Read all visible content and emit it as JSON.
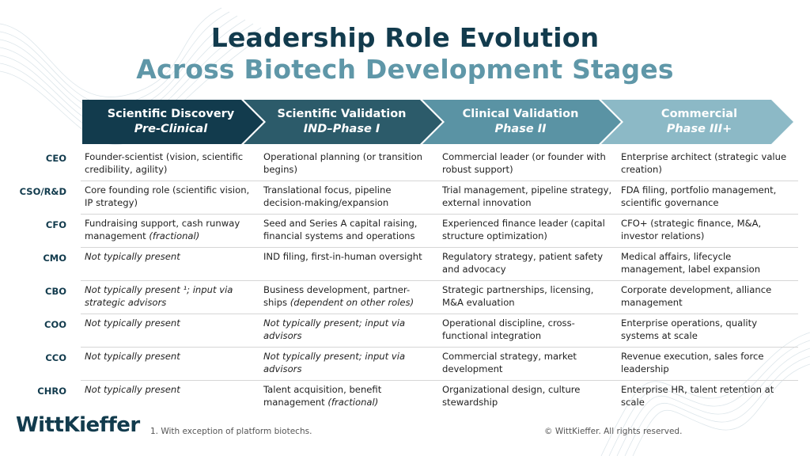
{
  "title": {
    "line1": "Leadership Role Evolution",
    "line2": "Across Biotech Development Stages"
  },
  "colors": {
    "title_dark": "#123b4d",
    "title_light": "#5f97a8",
    "stage1": "#123b4d",
    "stage2": "#2c5b6a",
    "stage3": "#5a93a4",
    "stage4": "#8cb9c6"
  },
  "stages": [
    {
      "name": "Scientific Discovery",
      "sub": "Pre-Clinical"
    },
    {
      "name": "Scientific Validation",
      "sub": "IND–Phase I"
    },
    {
      "name": "Clinical Validation",
      "sub": "Phase II"
    },
    {
      "name": "Commercial",
      "sub": "Phase III+"
    }
  ],
  "rows": [
    {
      "role": "CEO",
      "cells": [
        {
          "text": "Founder-scientist (vision, scientific credibility, agility)"
        },
        {
          "text": "Operational planning (or transition begins)"
        },
        {
          "text": "Commercial leader (or founder with robust support)"
        },
        {
          "text": "Enterprise architect (strategic value creation)"
        }
      ]
    },
    {
      "role": "CSO/R&D",
      "cells": [
        {
          "text": "Core founding role (scientific vision, IP strategy)"
        },
        {
          "text": "Translational focus, pipeline decision-making/expansion"
        },
        {
          "text": "Trial management, pipeline strategy, external innovation"
        },
        {
          "text": "FDA filing, portfolio management, scientific governance"
        }
      ]
    },
    {
      "role": "CFO",
      "cells": [
        {
          "text": "Fundraising support, cash runway management ",
          "em": "(fractional)"
        },
        {
          "text": "Seed and Series A capital raising, financial systems and operations"
        },
        {
          "text": "Experienced finance leader (capital structure optimization)"
        },
        {
          "text": "CFO+ (strategic finance, M&A, investor relations)"
        }
      ]
    },
    {
      "role": "CMO",
      "cells": [
        {
          "text": "",
          "em": "Not typically present"
        },
        {
          "text": "IND filing, first-in-human oversight"
        },
        {
          "text": "Regulatory strategy, patient safety and advocacy"
        },
        {
          "text": "Medical affairs, lifecycle management, label expansion"
        }
      ]
    },
    {
      "role": "CBO",
      "cells": [
        {
          "text": "",
          "em": "Not typically present ¹; input via strategic advisors"
        },
        {
          "text": "Business development, partner-ships ",
          "em": "(dependent on other roles)"
        },
        {
          "text": "Strategic partnerships, licensing, M&A evaluation"
        },
        {
          "text": "Corporate development, alliance management"
        }
      ]
    },
    {
      "role": "COO",
      "cells": [
        {
          "text": "",
          "em": "Not typically present"
        },
        {
          "text": "",
          "em": "Not typically present; input via advisors"
        },
        {
          "text": "Operational discipline, cross-functional integration"
        },
        {
          "text": "Enterprise operations, quality systems at scale"
        }
      ]
    },
    {
      "role": "CCO",
      "cells": [
        {
          "text": "",
          "em": "Not typically present"
        },
        {
          "text": "",
          "em": "Not typically present; input via advisors"
        },
        {
          "text": "Commercial strategy, market development"
        },
        {
          "text": "Revenue execution, sales force leadership"
        }
      ]
    },
    {
      "role": "CHRO",
      "cells": [
        {
          "text": "",
          "em": "Not typically present"
        },
        {
          "text": "Talent acquisition, benefit management ",
          "em": "(fractional)"
        },
        {
          "text": "Organizational design, culture stewardship"
        },
        {
          "text": "Enterprise HR, talent retention at scale"
        }
      ]
    }
  ],
  "footer": {
    "logo": "WittKieffer",
    "footnote": "1. With exception of platform biotechs.",
    "copyright": "© WittKieffer. All rights reserved."
  }
}
